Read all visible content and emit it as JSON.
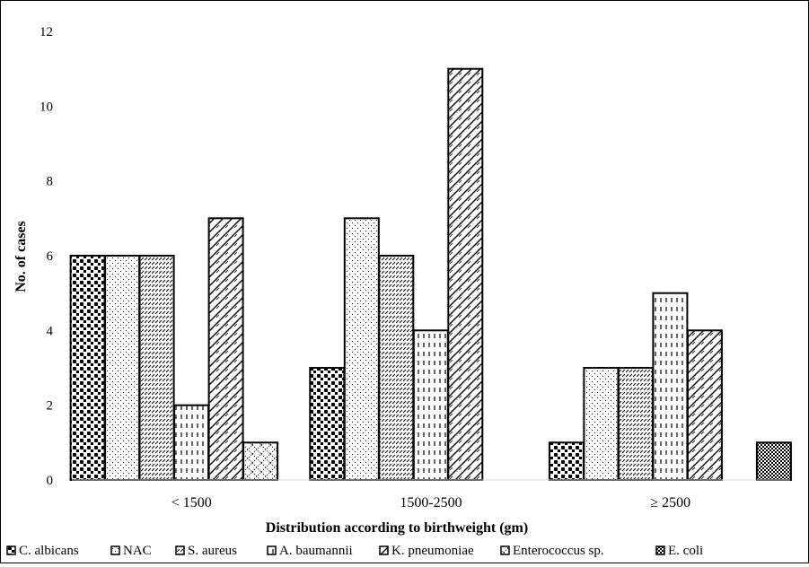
{
  "chart_data": {
    "type": "bar",
    "title": "",
    "xlabel": "Distribution according to birthweight (gm)",
    "ylabel": "No. of cases",
    "ylim": [
      0,
      12
    ],
    "yticks": [
      "0",
      "2",
      "4",
      "6",
      "8",
      "10",
      "12"
    ],
    "categories": [
      "< 1500",
      "1500-2500",
      "≥ 2500"
    ],
    "grid": false,
    "legend_position": "bottom",
    "series": [
      {
        "name": "C. albicans",
        "values": [
          6,
          3,
          1
        ]
      },
      {
        "name": "NAC",
        "values": [
          6,
          7,
          3
        ]
      },
      {
        "name": "S. aureus",
        "values": [
          6,
          6,
          3
        ]
      },
      {
        "name": "A. baumannii",
        "values": [
          2,
          4,
          5
        ]
      },
      {
        "name": "K. pneumoniae",
        "values": [
          7,
          11,
          4
        ]
      },
      {
        "name": "Enterococcus sp.",
        "values": [
          1,
          0,
          0
        ]
      },
      {
        "name": "E. coli",
        "values": [
          0,
          0,
          1
        ]
      }
    ]
  }
}
